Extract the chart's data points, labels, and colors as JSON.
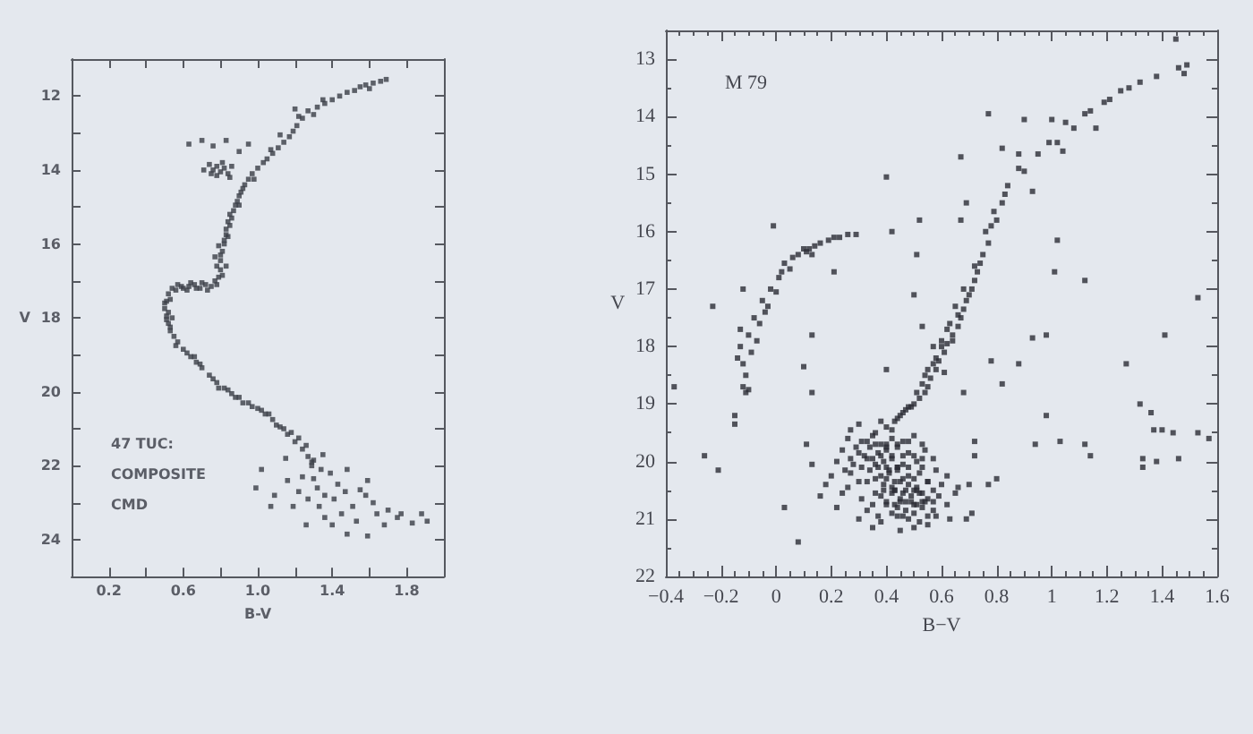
{
  "chart_data": [
    {
      "type": "scatter",
      "xlabel": "B-V",
      "ylabel": "V",
      "annotations": [
        "47 TUC:",
        "COMPOSITE",
        "CMD"
      ],
      "marker": "square",
      "xlim": [
        0,
        2.0
      ],
      "xticks": [
        0.2,
        {
          "value": 0.4,
          "label": null
        },
        0.6,
        {
          "value": 0.8,
          "label": null
        },
        {
          "value": 1.0,
          "label": "1.0"
        },
        {
          "value": 1.2,
          "label": null
        },
        1.4,
        {
          "value": 1.6,
          "label": null
        },
        1.8
      ],
      "ylim": [
        25,
        11
      ],
      "yticks": [
        12,
        {
          "value": 13,
          "label": null
        },
        14,
        {
          "value": 15,
          "label": null
        },
        16,
        {
          "value": 17,
          "label": null
        },
        18,
        {
          "value": 19,
          "label": null
        },
        20,
        {
          "value": 21,
          "label": null
        },
        22,
        {
          "value": 23,
          "label": null
        },
        24
      ],
      "series": [
        {
          "color": "#3a3d46",
          "x": [
            1.69,
            1.66,
            1.62,
            1.58,
            1.55,
            1.6,
            1.52,
            1.48,
            1.44,
            1.4,
            1.36,
            1.32,
            1.27,
            1.3,
            1.24,
            1.21,
            1.19,
            1.17,
            1.14,
            1.11,
            1.08,
            1.05,
            1.03,
            1.0,
            0.97,
            0.95,
            0.93,
            0.92,
            0.9,
            0.89,
            0.87,
            0.86,
            0.85,
            0.83,
            0.82,
            0.81,
            0.8,
            0.8,
            0.79,
            0.78,
            1.22,
            1.12,
            1.07,
            0.98,
            0.9,
            0.84,
            0.77,
            0.83,
            1.2,
            1.35,
            0.63,
            0.7,
            0.76,
            0.83,
            0.9,
            0.95,
            0.74,
            0.76,
            0.78,
            0.8,
            0.82,
            0.84,
            0.86,
            0.78,
            0.81,
            0.71,
            0.85,
            0.75,
            0.75,
            0.72,
            0.69,
            0.66,
            0.63,
            0.6,
            0.57,
            0.54,
            0.7,
            0.62,
            0.77,
            0.73,
            0.52,
            0.51,
            0.5,
            0.51,
            0.52,
            0.53,
            0.55,
            0.57,
            0.54,
            0.5,
            0.6,
            0.64,
            0.67,
            0.7,
            0.74,
            0.78,
            0.82,
            0.86,
            0.9,
            0.95,
            1.0,
            1.04,
            1.08,
            1.12,
            1.16,
            1.2,
            1.24,
            1.27,
            1.29,
            0.66,
            0.79,
            0.92,
            1.06,
            1.18,
            1.1,
            1.26,
            1.36,
            1.48,
            1.59,
            1.75,
            1.88,
            1.91,
            1.77,
            1.64,
            1.58,
            1.59,
            1.48,
            1.35,
            0.99,
            1.02,
            1.09,
            1.19,
            1.24,
            1.32,
            1.41,
            1.39,
            1.51,
            1.15,
            1.29,
            1.43,
            1.55,
            1.33,
            1.07,
            1.3,
            1.36,
            1.45,
            1.22,
            1.53,
            1.68,
            1.4,
            1.34,
            1.27,
            1.47,
            1.62,
            1.7,
            1.83,
            1.16,
            0.91,
            0.88,
            0.85,
            0.84,
            0.82,
            0.8,
            0.78,
            0.81,
            0.83,
            0.79,
            0.67,
            0.64,
            0.59,
            0.56,
            0.53,
            0.52,
            0.51,
            0.53,
            0.56,
            0.62,
            0.69,
            0.76,
            0.84,
            0.88,
            0.97,
            1.02,
            1.14,
            1.22,
            1.26,
            1.3
          ],
          "values": [
            11.55,
            11.6,
            11.65,
            11.7,
            11.75,
            11.8,
            11.85,
            11.9,
            12.0,
            12.1,
            12.2,
            12.3,
            12.4,
            12.5,
            12.6,
            12.8,
            12.95,
            13.1,
            13.25,
            13.4,
            13.55,
            13.7,
            13.8,
            13.95,
            14.1,
            14.25,
            14.4,
            14.5,
            14.7,
            14.85,
            15.1,
            15.3,
            15.5,
            15.75,
            16.0,
            16.2,
            16.45,
            16.7,
            16.9,
            17.1,
            12.55,
            13.05,
            13.45,
            14.25,
            14.95,
            15.8,
            16.35,
            16.6,
            12.35,
            12.1,
            13.3,
            13.2,
            13.35,
            13.2,
            13.5,
            13.3,
            13.85,
            14.0,
            13.9,
            14.05,
            13.95,
            14.1,
            13.9,
            14.15,
            13.8,
            14.0,
            14.2,
            14.1,
            17.15,
            17.1,
            17.2,
            17.1,
            17.15,
            17.2,
            17.1,
            17.2,
            17.05,
            17.25,
            17.0,
            17.25,
            17.35,
            17.55,
            17.75,
            17.95,
            18.15,
            18.35,
            18.5,
            18.65,
            18.0,
            17.6,
            18.85,
            19.05,
            19.2,
            19.35,
            19.55,
            19.75,
            19.9,
            20.05,
            20.15,
            20.3,
            20.45,
            20.6,
            20.75,
            20.95,
            21.15,
            21.35,
            21.55,
            21.75,
            22.0,
            19.05,
            19.9,
            20.3,
            20.6,
            21.1,
            20.9,
            23.6,
            23.4,
            23.85,
            23.9,
            23.4,
            23.3,
            23.5,
            23.3,
            23.3,
            22.8,
            22.4,
            22.1,
            21.7,
            22.6,
            22.1,
            22.8,
            23.1,
            22.3,
            22.6,
            22.9,
            22.2,
            23.1,
            21.8,
            21.9,
            22.5,
            22.65,
            23.1,
            23.1,
            22.35,
            22.8,
            23.3,
            22.7,
            23.5,
            23.6,
            23.6,
            22.1,
            22.9,
            22.7,
            23.0,
            23.2,
            23.55,
            22.4,
            14.6,
            14.95,
            15.2,
            15.4,
            15.9,
            16.3,
            16.6,
            16.85,
            15.6,
            16.05,
            17.2,
            17.05,
            17.15,
            17.25,
            17.5,
            17.85,
            18.05,
            18.25,
            18.75,
            18.95,
            19.25,
            19.65,
            19.95,
            20.15,
            20.4,
            20.5,
            21.0,
            21.25,
            21.45,
            21.85
          ]
        }
      ]
    },
    {
      "type": "scatter",
      "xlabel": "B−V",
      "ylabel": "V",
      "annotations": [
        "M 79"
      ],
      "marker": "square",
      "xlim": [
        -0.4,
        1.6
      ],
      "xticks": [
        {
          "value": -0.4,
          "label": "−0.4"
        },
        {
          "value": -0.35,
          "label": null
        },
        {
          "value": -0.3,
          "label": null
        },
        {
          "value": -0.25,
          "label": null
        },
        {
          "value": -0.2,
          "label": "−0.2"
        },
        {
          "value": -0.15,
          "label": null
        },
        {
          "value": -0.1,
          "label": null
        },
        {
          "value": -0.05,
          "label": null
        },
        0,
        {
          "value": 0.05,
          "label": null
        },
        {
          "value": 0.1,
          "label": null
        },
        {
          "value": 0.15,
          "label": null
        },
        0.2,
        {
          "value": 0.25,
          "label": null
        },
        {
          "value": 0.3,
          "label": null
        },
        {
          "value": 0.35,
          "label": null
        },
        0.4,
        {
          "value": 0.45,
          "label": null
        },
        {
          "value": 0.5,
          "label": null
        },
        {
          "value": 0.55,
          "label": null
        },
        0.6,
        {
          "value": 0.65,
          "label": null
        },
        {
          "value": 0.7,
          "label": null
        },
        {
          "value": 0.75,
          "label": null
        },
        0.8,
        {
          "value": 0.85,
          "label": null
        },
        {
          "value": 0.9,
          "label": null
        },
        {
          "value": 0.95,
          "label": null
        },
        1,
        {
          "value": 1.05,
          "label": null
        },
        {
          "value": 1.1,
          "label": null
        },
        {
          "value": 1.15,
          "label": null
        },
        1.2,
        {
          "value": 1.25,
          "label": null
        },
        {
          "value": 1.3,
          "label": null
        },
        {
          "value": 1.35,
          "label": null
        },
        1.4,
        {
          "value": 1.45,
          "label": null
        },
        {
          "value": 1.5,
          "label": null
        },
        {
          "value": 1.55,
          "label": null
        },
        1.6
      ],
      "ylim": [
        22,
        12.5
      ],
      "yticks": [
        {
          "value": 12.5,
          "label": null
        },
        13,
        {
          "value": 13.5,
          "label": null
        },
        14,
        {
          "value": 14.5,
          "label": null
        },
        15,
        {
          "value": 15.5,
          "label": null
        },
        16,
        {
          "value": 16.5,
          "label": null
        },
        17,
        {
          "value": 17.5,
          "label": null
        },
        18,
        {
          "value": 18.5,
          "label": null
        },
        19,
        {
          "value": 19.5,
          "label": null
        },
        20,
        {
          "value": 20.5,
          "label": null
        },
        21,
        {
          "value": 21.5,
          "label": null
        },
        22
      ],
      "series": [
        {
          "color": "#2a2c34",
          "x": [
            -0.15,
            -0.15,
            -0.11,
            -0.12,
            -0.1,
            -0.12,
            -0.13,
            -0.09,
            -0.1,
            -0.08,
            -0.06,
            -0.05,
            -0.03,
            -0.02,
            0.01,
            0,
            0.03,
            0.05,
            0.06,
            0.08,
            0.1,
            0.12,
            0.14,
            0.16,
            0.19,
            0.21,
            0.23,
            0.26,
            0.29,
            0.11,
            0.13,
            0.02,
            -0.04,
            -0.07,
            -0.14,
            -0.11,
            -0.13,
            -0.01,
            -0.12,
            -0.23,
            0.21,
            1.45,
            1.46,
            1.49,
            1.48,
            1.38,
            1.32,
            1.28,
            1.25,
            1.19,
            1.21,
            1.14,
            1.12,
            1.16,
            1.08,
            1.05,
            1,
            0.99,
            1.02,
            1.04,
            0.95,
            0.88,
            0.82,
            0.88,
            0.9,
            0.93,
            0.84,
            0.82,
            0.8,
            0.77,
            0.75,
            0.73,
            0.71,
            0.69,
            0.67,
            0.62,
            0.58,
            0.54,
            0.47,
            0.4,
            0.79,
            0.76,
            0.74,
            0.72,
            0.7,
            0.68,
            0.66,
            0.64,
            0.61,
            0.59,
            0.56,
            0.55,
            0.52,
            0.5,
            0.72,
            0.68,
            0.65,
            0.63,
            0.6,
            0.58,
            0.57,
            0.54,
            0.83,
            0.78,
            0.62,
            0.6,
            0.57,
            0.55,
            0.53,
            0.51,
            0.49,
            0.46,
            0.44,
            0.66,
            0.64,
            0.61,
            0.42,
            0.4,
            0.52,
            0.67,
            0.77,
            0.9,
            1.02,
            1.01,
            1.12,
            1.53,
            0.51,
            0.5,
            0.69,
            0.67,
            -0.37,
            -0.26,
            -0.21,
            0.03,
            0.08,
            0.11,
            0.13,
            0.13,
            0.1,
            0.13,
            0.78,
            0.82,
            0.88,
            0.93,
            0.98,
            0.98,
            0.94,
            1.03,
            1.12,
            1.14,
            1.27,
            1.32,
            1.36,
            1.37,
            1.4,
            1.44,
            1.41,
            1.33,
            1.33,
            1.38,
            1.46,
            1.53,
            1.57,
            0.53,
            0.4,
            0.68,
            0.72,
            0.72,
            0.7,
            0.77,
            0.8,
            0.71,
            0.69,
            0.45,
            0.43,
            0.48,
            0.42,
            0.38,
            0.36,
            0.3,
            0.27,
            0.26,
            0.31,
            0.35,
            0.38,
            0.42,
            0.46,
            0.5,
            0.53,
            0.24,
            0.3,
            0.34,
            0.37,
            0.4,
            0.44,
            0.48,
            0.54,
            0.22,
            0.28,
            0.33,
            0.36,
            0.39,
            0.42,
            0.46,
            0.51,
            0.57,
            0.2,
            0.27,
            0.34,
            0.38,
            0.41,
            0.44,
            0.48,
            0.52,
            0.58,
            0.62,
            0.18,
            0.26,
            0.33,
            0.39,
            0.42,
            0.45,
            0.48,
            0.51,
            0.55,
            0.6,
            0.66,
            0.16,
            0.24,
            0.31,
            0.38,
            0.42,
            0.45,
            0.49,
            0.52,
            0.55,
            0.59,
            0.65,
            0.22,
            0.33,
            0.4,
            0.44,
            0.47,
            0.5,
            0.53,
            0.57,
            0.62,
            0.3,
            0.38,
            0.44,
            0.48,
            0.52,
            0.58,
            0.63,
            0.35,
            0.45,
            0.5,
            0.55,
            0.36,
            0.4,
            0.44,
            0.38,
            0.42,
            0.46,
            0.4,
            0.44,
            0.48,
            0.43,
            0.47,
            0.51,
            0.45,
            0.49,
            0.53,
            0.29,
            0.33,
            0.4,
            0.48,
            0.27,
            0.32,
            0.35,
            0.5,
            0.53,
            0.25,
            0.31,
            0.37,
            0.41,
            0.44,
            0.53,
            0.3,
            0.36,
            0.4,
            0.43,
            0.46,
            0.5,
            0.55,
            0.36,
            0.39,
            0.43,
            0.46,
            0.5,
            0.53,
            0.57,
            0.35,
            0.4,
            0.43,
            0.47,
            0.51,
            0.54,
            0.57,
            0.37,
            0.42,
            0.46,
            0.5,
            0.55
          ],
          "values": [
            19.35,
            19.2,
            18.8,
            18.7,
            18.75,
            18.3,
            18.0,
            18.1,
            17.8,
            17.5,
            17.6,
            17.2,
            17.3,
            17.0,
            16.8,
            17.05,
            16.55,
            16.65,
            16.45,
            16.4,
            16.3,
            16.3,
            16.25,
            16.2,
            16.15,
            16.1,
            16.1,
            16.05,
            16.05,
            16.35,
            16.4,
            16.7,
            17.4,
            17.9,
            18.2,
            18.5,
            17.7,
            15.9,
            17.0,
            17.3,
            16.7,
            12.65,
            13.15,
            13.1,
            13.25,
            13.3,
            13.4,
            13.5,
            13.55,
            13.75,
            13.7,
            13.9,
            13.95,
            14.2,
            14.2,
            14.1,
            14.05,
            14.45,
            14.45,
            14.6,
            14.65,
            14.65,
            14.55,
            14.9,
            14.95,
            15.3,
            15.2,
            15.5,
            15.8,
            16.2,
            16.4,
            16.7,
            17.0,
            17.2,
            17.5,
            17.95,
            18.4,
            18.8,
            19.1,
            19.4,
            15.65,
            16.0,
            16.55,
            16.85,
            17.1,
            17.35,
            17.65,
            17.8,
            18.1,
            18.25,
            18.55,
            18.7,
            18.9,
            19.0,
            16.6,
            17.0,
            17.3,
            17.6,
            17.9,
            18.2,
            18.0,
            18.5,
            15.35,
            15.9,
            17.7,
            18.0,
            18.3,
            18.4,
            18.65,
            18.8,
            19.05,
            19.15,
            19.25,
            17.45,
            17.9,
            18.45,
            16.0,
            15.05,
            15.8,
            14.7,
            13.95,
            14.05,
            16.15,
            16.7,
            16.85,
            17.15,
            16.4,
            17.1,
            15.5,
            15.8,
            18.7,
            19.9,
            20.15,
            20.8,
            21.4,
            19.7,
            20.05,
            18.8,
            18.35,
            17.8,
            18.25,
            18.65,
            18.3,
            17.85,
            17.8,
            19.2,
            19.7,
            19.65,
            19.7,
            19.9,
            18.3,
            19.0,
            19.15,
            19.45,
            19.45,
            19.5,
            17.8,
            19.95,
            20.1,
            20.0,
            19.95,
            19.5,
            19.6,
            17.65,
            18.4,
            18.8,
            19.65,
            19.9,
            20.4,
            20.4,
            20.3,
            20.9,
            21.0,
            19.2,
            19.3,
            19.05,
            19.45,
            19.3,
            19.5,
            19.35,
            19.45,
            19.6,
            19.65,
            19.55,
            19.7,
            19.6,
            19.65,
            19.55,
            19.7,
            19.8,
            19.85,
            19.75,
            19.85,
            19.8,
            19.75,
            19.85,
            19.8,
            20.0,
            20.05,
            19.95,
            20.05,
            20.0,
            19.95,
            20.05,
            20.0,
            19.95,
            20.25,
            20.2,
            20.15,
            20.25,
            20.2,
            20.15,
            20.25,
            20.2,
            20.15,
            20.25,
            20.4,
            20.45,
            20.35,
            20.4,
            20.45,
            20.35,
            20.4,
            20.45,
            20.35,
            20.4,
            20.45,
            20.6,
            20.55,
            20.65,
            20.6,
            20.55,
            20.65,
            20.6,
            20.55,
            20.65,
            20.6,
            20.55,
            20.8,
            20.85,
            20.75,
            20.8,
            20.85,
            20.75,
            20.8,
            20.85,
            20.75,
            21.0,
            21.05,
            20.95,
            21.0,
            21.05,
            20.95,
            21.0,
            21.15,
            21.2,
            21.15,
            21.1,
            19.7,
            19.7,
            19.7,
            19.9,
            19.9,
            19.9,
            20.1,
            20.1,
            20.1,
            20.5,
            20.5,
            20.5,
            20.7,
            20.7,
            20.7,
            19.75,
            19.65,
            19.75,
            19.65,
            19.95,
            19.9,
            19.95,
            19.9,
            19.95,
            20.15,
            20.1,
            20.1,
            20.15,
            20.1,
            20.1,
            20.35,
            20.3,
            20.3,
            20.35,
            20.3,
            20.3,
            20.35,
            20.55,
            20.5,
            20.5,
            20.55,
            20.5,
            20.55,
            20.5,
            20.75,
            20.7,
            20.75,
            20.7,
            20.75,
            20.7,
            20.7,
            20.95,
            20.9,
            20.95,
            20.9,
            20.95
          ]
        }
      ]
    }
  ]
}
